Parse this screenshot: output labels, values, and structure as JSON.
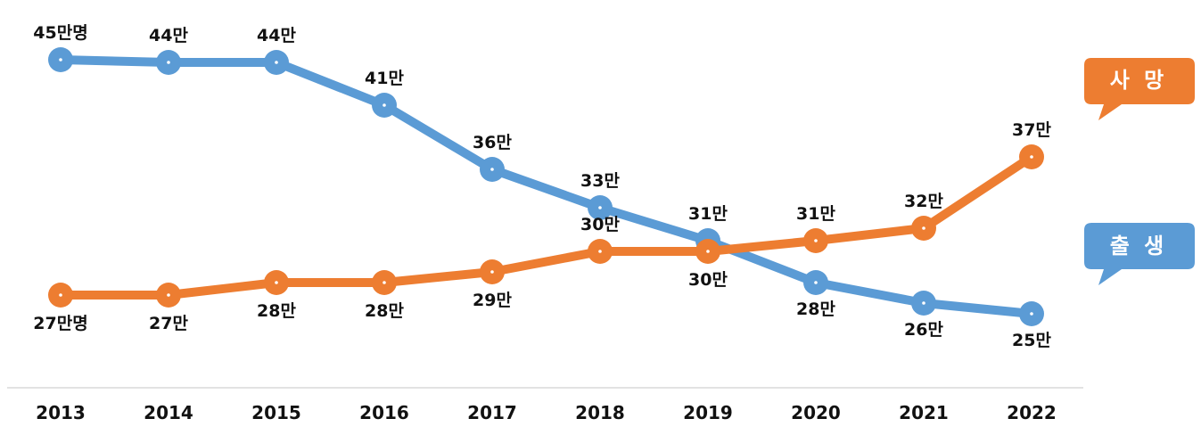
{
  "chart_data": {
    "type": "line",
    "x": [
      "2013",
      "2014",
      "2015",
      "2016",
      "2017",
      "2018",
      "2019",
      "2020",
      "2021",
      "2022"
    ],
    "ylim": [
      22,
      47
    ],
    "grid": false,
    "series": [
      {
        "name": "출 생",
        "color": "#5b9bd5",
        "values": [
          45,
          44,
          44,
          41,
          36,
          33,
          31,
          28,
          26,
          25
        ],
        "labels": [
          "45만명",
          "44만",
          "44만",
          "41만",
          "36만",
          "33만",
          "31만",
          "28만",
          "26만",
          "25만"
        ]
      },
      {
        "name": "사 망",
        "color": "#ed7d31",
        "values": [
          27,
          27,
          28,
          28,
          29,
          30,
          30,
          31,
          32,
          37
        ],
        "labels": [
          "27만명",
          "27만",
          "28만",
          "28만",
          "29만",
          "30만",
          "30만",
          "31만",
          "32만",
          "37만"
        ]
      }
    ],
    "legend": "right"
  }
}
